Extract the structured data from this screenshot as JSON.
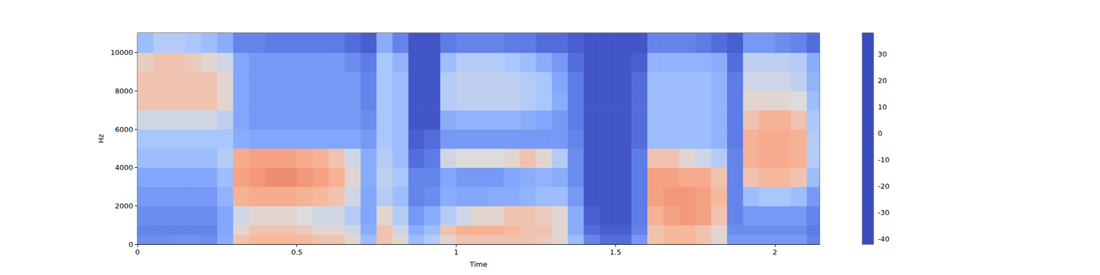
{
  "chart_data": {
    "type": "heatmap",
    "x_label": "Time",
    "y_label": "Hz",
    "xlim": [
      0,
      2.14
    ],
    "xticks": [
      0,
      0.5,
      1,
      1.5,
      2
    ],
    "ylim": [
      0,
      11025
    ],
    "yticks": [
      0,
      2000,
      4000,
      6000,
      8000,
      10000
    ],
    "x_edges": [
      0,
      0.05,
      0.1,
      0.15,
      0.2,
      0.25,
      0.3,
      0.35,
      0.4,
      0.45,
      0.5,
      0.55,
      0.6,
      0.65,
      0.7,
      0.75,
      0.8,
      0.85,
      0.9,
      0.95,
      1.0,
      1.05,
      1.1,
      1.15,
      1.2,
      1.25,
      1.3,
      1.35,
      1.4,
      1.45,
      1.5,
      1.55,
      1.6,
      1.65,
      1.7,
      1.75,
      1.8,
      1.85,
      1.9,
      1.95,
      2.0,
      2.05,
      2.1,
      2.14
    ],
    "y_edges": [
      0,
      500,
      1000,
      2000,
      3000,
      4000,
      5000,
      6000,
      7000,
      8000,
      9000,
      10000,
      11025
    ],
    "cells": [
      [
        -28,
        -28,
        -27,
        -27,
        -28,
        -20,
        5,
        8,
        8,
        8,
        8,
        5,
        5,
        0,
        -15,
        5,
        0,
        -15,
        -10,
        0,
        5,
        5,
        5,
        5,
        5,
        3,
        0,
        -15,
        -30,
        -35,
        -35,
        -25,
        5,
        8,
        8,
        5,
        0,
        -25,
        -25,
        -25,
        -25,
        -25,
        -30
      ],
      [
        -30,
        -30,
        -30,
        -30,
        -30,
        -22,
        0,
        5,
        5,
        5,
        3,
        0,
        0,
        -5,
        -20,
        5,
        -5,
        -20,
        -15,
        5,
        10,
        10,
        10,
        8,
        5,
        5,
        0,
        -20,
        -35,
        -38,
        -38,
        -30,
        5,
        8,
        8,
        5,
        0,
        -28,
        -28,
        -28,
        -28,
        -28,
        -32
      ],
      [
        -28,
        -28,
        -28,
        -28,
        -28,
        -22,
        -5,
        0,
        0,
        0,
        -2,
        -5,
        -5,
        -10,
        -22,
        0,
        -10,
        -25,
        -20,
        -10,
        -5,
        0,
        0,
        5,
        5,
        3,
        0,
        -20,
        -38,
        -40,
        -40,
        -32,
        10,
        15,
        18,
        15,
        5,
        -30,
        -25,
        -25,
        -25,
        -25,
        -30
      ],
      [
        -25,
        -25,
        -25,
        -25,
        -25,
        -18,
        10,
        12,
        12,
        12,
        10,
        8,
        5,
        -5,
        -22,
        -10,
        -15,
        -30,
        -28,
        -20,
        -22,
        -22,
        -20,
        -20,
        -18,
        -15,
        -15,
        -25,
        -40,
        -40,
        -40,
        -32,
        15,
        18,
        18,
        15,
        8,
        -30,
        -15,
        -12,
        -12,
        -15,
        -25
      ],
      [
        -22,
        -22,
        -22,
        -22,
        -22,
        -15,
        15,
        18,
        20,
        20,
        18,
        15,
        10,
        0,
        -20,
        -8,
        -12,
        -30,
        -30,
        -22,
        -25,
        -25,
        -25,
        -22,
        -20,
        -18,
        -20,
        -28,
        -40,
        -40,
        -40,
        -32,
        15,
        15,
        12,
        12,
        5,
        -30,
        5,
        8,
        8,
        5,
        -15
      ],
      [
        -15,
        -15,
        -15,
        -15,
        -15,
        -10,
        12,
        15,
        15,
        15,
        12,
        10,
        5,
        -5,
        -20,
        -10,
        -15,
        -35,
        -32,
        -5,
        -2,
        -2,
        -2,
        0,
        5,
        0,
        -10,
        -28,
        -40,
        -40,
        -40,
        -32,
        5,
        5,
        0,
        -5,
        -10,
        -30,
        10,
        12,
        12,
        10,
        -10
      ],
      [
        -12,
        -12,
        -12,
        -12,
        -12,
        -12,
        -20,
        -22,
        -22,
        -22,
        -22,
        -22,
        -22,
        -22,
        -25,
        -12,
        -15,
        -38,
        -35,
        -25,
        -25,
        -25,
        -25,
        -25,
        -25,
        -25,
        -25,
        -30,
        -40,
        -40,
        -40,
        -35,
        -15,
        -15,
        -15,
        -15,
        -18,
        -32,
        10,
        12,
        12,
        10,
        -10
      ],
      [
        -5,
        -5,
        -5,
        -5,
        -5,
        -8,
        -22,
        -25,
        -25,
        -25,
        -25,
        -25,
        -25,
        -25,
        -28,
        -12,
        -15,
        -40,
        -40,
        -20,
        -18,
        -18,
        -18,
        -18,
        -20,
        -22,
        -25,
        -32,
        -40,
        -40,
        -40,
        -35,
        -15,
        -15,
        -15,
        -15,
        -18,
        -32,
        5,
        10,
        10,
        5,
        -12
      ],
      [
        5,
        5,
        5,
        5,
        5,
        0,
        -22,
        -25,
        -25,
        -25,
        -25,
        -25,
        -25,
        -25,
        -30,
        -12,
        -15,
        -40,
        -40,
        -10,
        -8,
        -8,
        -8,
        -8,
        -10,
        -12,
        -20,
        -32,
        -40,
        -40,
        -40,
        -35,
        -15,
        -15,
        -15,
        -15,
        -18,
        -32,
        0,
        0,
        0,
        -2,
        -15
      ],
      [
        5,
        5,
        5,
        5,
        5,
        0,
        -22,
        -25,
        -25,
        -25,
        -25,
        -25,
        -25,
        -25,
        -30,
        -12,
        -15,
        -40,
        -40,
        -10,
        -8,
        -8,
        -8,
        -8,
        -10,
        -12,
        -22,
        -32,
        -40,
        -40,
        -40,
        -35,
        -15,
        -15,
        -15,
        -15,
        -18,
        -32,
        -5,
        -5,
        -5,
        -8,
        -18
      ],
      [
        2,
        5,
        5,
        3,
        0,
        -5,
        -22,
        -25,
        -25,
        -25,
        -25,
        -25,
        -25,
        -28,
        -32,
        -12,
        -18,
        -40,
        -40,
        -15,
        -10,
        -10,
        -10,
        -12,
        -15,
        -20,
        -25,
        -35,
        -40,
        -40,
        -40,
        -38,
        -18,
        -18,
        -18,
        -18,
        -20,
        -35,
        -8,
        -8,
        -8,
        -10,
        -20
      ],
      [
        -15,
        -10,
        -10,
        -12,
        -15,
        -20,
        -30,
        -30,
        -32,
        -32,
        -32,
        -32,
        -32,
        -35,
        -38,
        -20,
        -30,
        -40,
        -40,
        -32,
        -30,
        -30,
        -30,
        -32,
        -32,
        -35,
        -35,
        -38,
        -40,
        -40,
        -40,
        -40,
        -30,
        -30,
        -30,
        -32,
        -35,
        -38,
        -25,
        -25,
        -28,
        -30,
        -35
      ]
    ],
    "colorbar": {
      "range": [
        -42,
        38
      ],
      "ticks": [
        -40,
        -30,
        -20,
        -10,
        0,
        10,
        20,
        30
      ]
    }
  }
}
